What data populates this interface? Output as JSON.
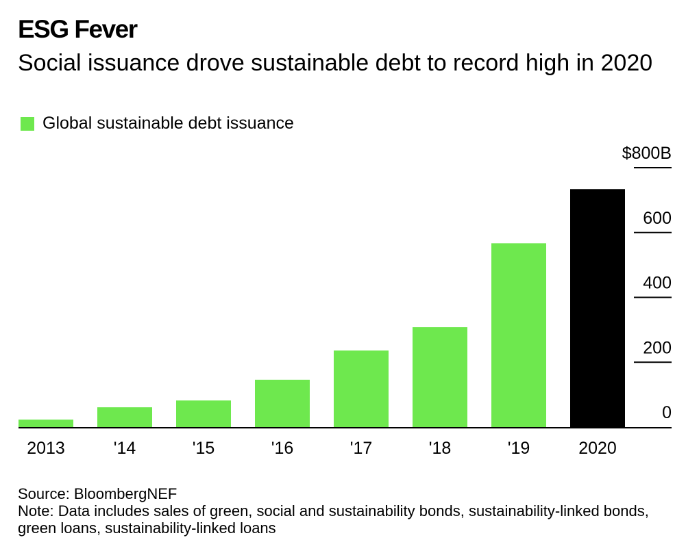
{
  "header": {
    "brand": "ESG Fever",
    "title": "Social issuance drove sustainable debt to record high in 2020"
  },
  "colors": {
    "bar": "#6ee84e",
    "highlight": "#000000"
  },
  "chart_data": {
    "type": "bar",
    "title": "Social issuance drove sustainable debt to record high in 2020",
    "categories": [
      "2013",
      "'14",
      "'15",
      "'16",
      "'17",
      "'18",
      "'19",
      "2020"
    ],
    "series": [
      {
        "name": "Global sustainable debt issuance",
        "values": [
          23,
          61,
          82,
          146,
          236,
          308,
          567,
          734
        ]
      }
    ],
    "highlight_category": "2020",
    "ylim": [
      0,
      800
    ],
    "yticks": [
      0,
      200,
      400,
      600,
      800
    ],
    "ytick_labels": [
      "0",
      "200",
      "400",
      "600",
      "$800B"
    ],
    "yaxis_position": "right",
    "legend": "top-left",
    "grid": false
  },
  "footer": {
    "source": "Source: BloombergNEF",
    "note": "Note: Data includes sales of green, social and sustainability bonds, sustainability-linked bonds, green loans, sustainability-linked loans"
  }
}
